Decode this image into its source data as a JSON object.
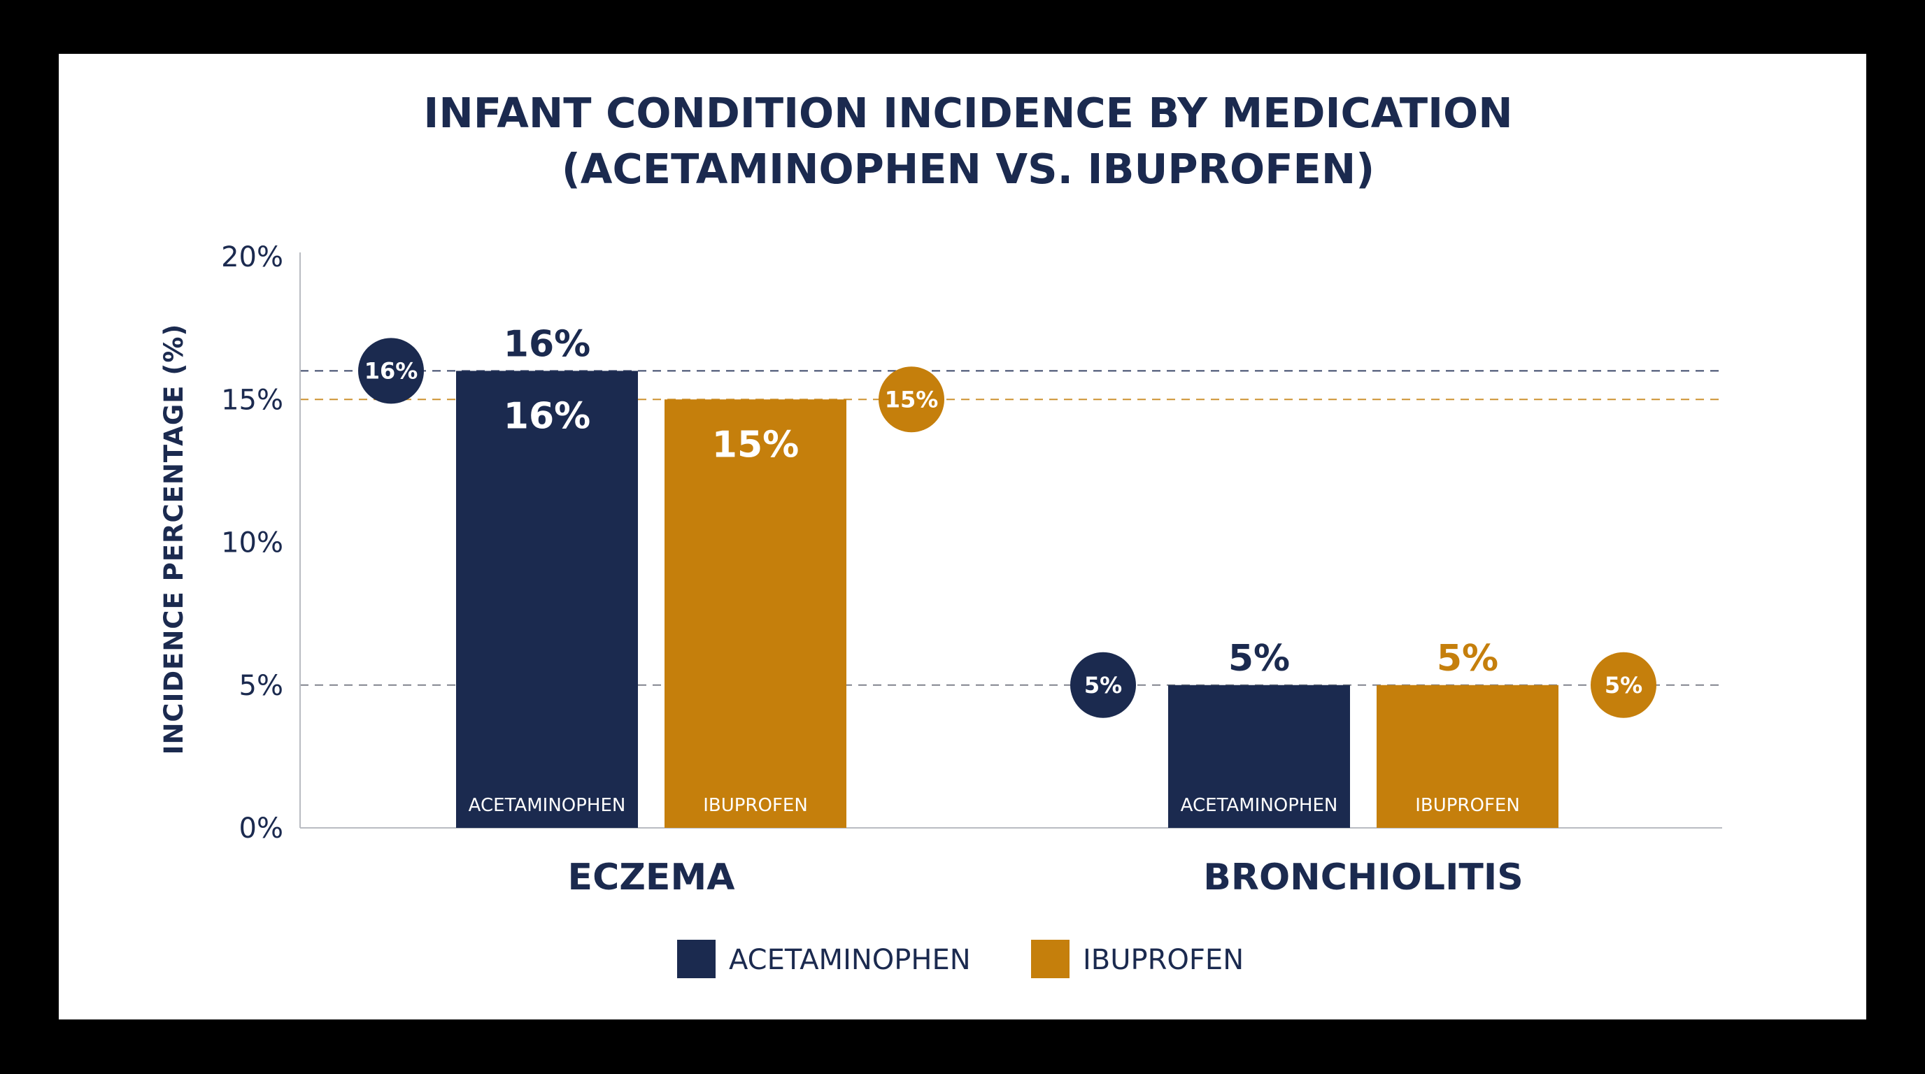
{
  "chart_data": {
    "type": "bar",
    "title": "INFANT CONDITION INCIDENCE BY MEDICATION (ACETAMINOPHEN VS. IBUPROFEN)",
    "title_lines": [
      "INFANT CONDITION INCIDENCE BY MEDICATION",
      "(ACETAMINOPHEN VS. IBUPROFEN)"
    ],
    "ylabel": "INCIDENCE PERCENTAGE (%)",
    "xlabel": "",
    "ylim": [
      0,
      20
    ],
    "yticks": [
      0,
      5,
      10,
      15,
      20
    ],
    "ytick_labels": [
      "0%",
      "5%",
      "10%",
      "15%",
      "20%"
    ],
    "categories": [
      "ECZEMA",
      "BRONCHIOLITIS"
    ],
    "series": [
      {
        "name": "ACETAMINOPHEN",
        "color": "#1b2a4f",
        "values": [
          16,
          5
        ],
        "value_labels": [
          "16%",
          "5%"
        ]
      },
      {
        "name": "IBUPROFEN",
        "color": "#c57f0c",
        "values": [
          15,
          5
        ],
        "value_labels": [
          "15%",
          "5%"
        ]
      }
    ],
    "bar_labels": [
      "ACETAMINOPHEN",
      "IBUPROFEN"
    ],
    "reference_lines": [
      {
        "value": 16,
        "color": "#1b2a4f"
      },
      {
        "value": 15,
        "color": "#c57f0c"
      },
      {
        "value": 5,
        "color": "#6b6f7a"
      }
    ],
    "legend": {
      "position": "bottom-center",
      "items": [
        "ACETAMINOPHEN",
        "IBUPROFEN"
      ]
    },
    "grid": false
  }
}
